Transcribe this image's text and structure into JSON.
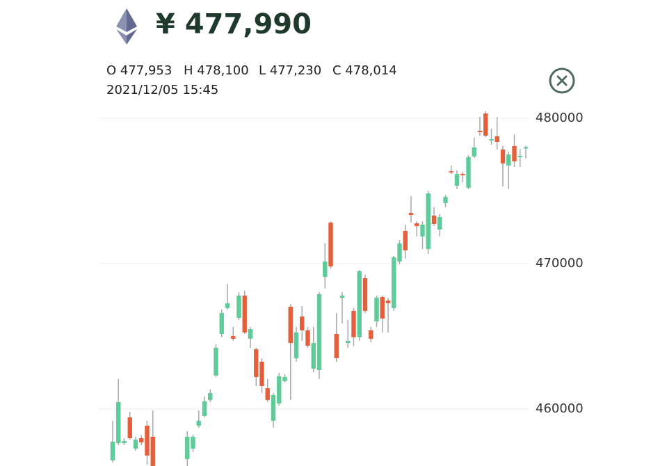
{
  "header": {
    "price": "¥ 477,990",
    "ohlc": [
      "O 477,953",
      "H 478,100",
      "L 477,230",
      "C 478,014"
    ],
    "datetime": "2021/12/05 15:45"
  },
  "chart_data": {
    "type": "candlestick",
    "up_color": "#5ecb98",
    "down_color": "#e4603b",
    "wick_color": "#a9a9a9",
    "ylim": [
      456000,
      481000
    ],
    "yticks": [
      460000,
      470000,
      480000
    ],
    "grid": true,
    "open": [
      456460,
      457650,
      457650,
      459420,
      457270,
      457990,
      458850,
      458090,
      null,
      null,
      null,
      null,
      null,
      456550,
      457270,
      458850,
      459520,
      460620,
      462300,
      465170,
      466940,
      465020,
      466270,
      467800,
      464830,
      464110,
      463250,
      461430,
      459190,
      460380,
      461910,
      467030,
      463490,
      466360,
      465410,
      462770,
      462680,
      469090,
      472820,
      465170,
      467650,
      464540,
      466750,
      464930,
      469000,
      465410,
      466030,
      467700,
      467460,
      466940,
      470140,
      472250,
      473490,
      472770,
      471870,
      471000,
      473300,
      472340,
      474160,
      476360,
      475360,
      476170,
      475220,
      477370,
      479140,
      480330,
      478470,
      478760,
      477850,
      476750,
      478090,
      477320,
      477953
    ],
    "high": [
      459190,
      462060,
      457990,
      459810,
      458080,
      458180,
      459190,
      459900,
      null,
      null,
      null,
      null,
      null,
      458470,
      458230,
      459900,
      460860,
      461340,
      464450,
      466840,
      468610,
      465650,
      468040,
      468130,
      465650,
      464210,
      463490,
      462060,
      461100,
      462490,
      462390,
      467220,
      465650,
      467080,
      465650,
      465650,
      468040,
      471390,
      472920,
      466600,
      468040,
      466120,
      466940,
      469570,
      469230,
      465650,
      467800,
      467800,
      467650,
      470530,
      471630,
      472680,
      474640,
      472920,
      472920,
      474980,
      473880,
      473400,
      474740,
      476750,
      476410,
      476320,
      477460,
      478660,
      480100,
      480480,
      479280,
      480100,
      478090,
      477700,
      478900,
      477890,
      478100
    ],
    "low": [
      456310,
      457510,
      457510,
      457890,
      457130,
      457510,
      456170,
      455980,
      null,
      null,
      null,
      null,
      null,
      455980,
      457030,
      458710,
      459420,
      460480,
      462200,
      464930,
      466840,
      464690,
      466120,
      465170,
      464210,
      461580,
      461100,
      460480,
      458710,
      460240,
      461820,
      460620,
      463250,
      464690,
      464210,
      462540,
      462060,
      468280,
      469660,
      463250,
      465880,
      464210,
      464310,
      464690,
      466600,
      464590,
      465650,
      465260,
      465260,
      466750,
      469950,
      470330,
      472820,
      471870,
      471000,
      470670,
      472580,
      471870,
      473880,
      476170,
      475120,
      475600,
      475120,
      477270,
      478800,
      478710,
      478180,
      477850,
      475310,
      475120,
      476650,
      476650,
      477230
    ],
    "close": [
      457750,
      460480,
      457800,
      457990,
      457890,
      457700,
      456790,
      456080,
      null,
      null,
      null,
      null,
      null,
      458090,
      458090,
      459190,
      460530,
      461100,
      464210,
      466600,
      467270,
      464830,
      467800,
      465260,
      465500,
      462200,
      461580,
      460620,
      460960,
      462250,
      462200,
      464540,
      465260,
      465410,
      464350,
      464540,
      467890,
      470140,
      469810,
      463490,
      467800,
      464690,
      464930,
      469470,
      466750,
      464830,
      467650,
      466220,
      467270,
      470430,
      471390,
      470910,
      473350,
      472580,
      472680,
      474830,
      472730,
      473210,
      474590,
      476270,
      476170,
      476080,
      477320,
      477990,
      479040,
      478800,
      478560,
      478370,
      476890,
      477510,
      477030,
      477420,
      478014
    ]
  }
}
